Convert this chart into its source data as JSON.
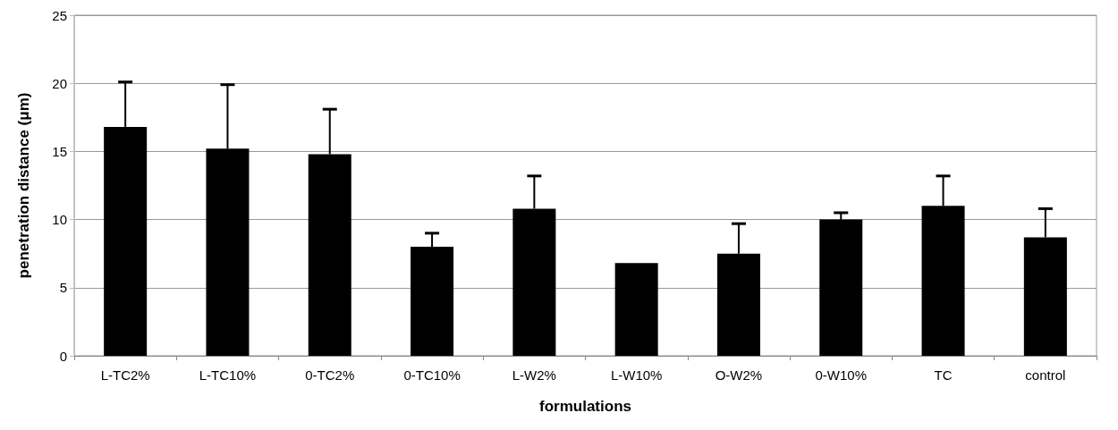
{
  "chart_data": {
    "type": "bar",
    "xlabel": "formulations",
    "ylabel": "penetration distance (μm)",
    "categories": [
      "L-TC2%",
      "L-TC10%",
      "0-TC2%",
      "0-TC10%",
      "L-W2%",
      "L-W10%",
      "O-W2%",
      "0-W10%",
      "TC",
      "control"
    ],
    "values": [
      16.8,
      15.2,
      14.8,
      8.0,
      10.8,
      6.8,
      7.5,
      10.0,
      11.0,
      8.7
    ],
    "errors": [
      [
        16.8,
        20.1
      ],
      [
        15.2,
        19.9
      ],
      [
        14.8,
        18.1
      ],
      [
        8.0,
        9.0
      ],
      [
        10.8,
        13.2
      ],
      null,
      [
        7.5,
        9.7
      ],
      [
        10.0,
        10.5
      ],
      [
        11.0,
        13.2
      ],
      [
        8.7,
        10.8
      ]
    ],
    "color": "#000000",
    "ylim": [
      0,
      25
    ],
    "yticks": [
      0,
      5,
      10,
      15,
      20,
      25
    ],
    "grid": "y"
  }
}
